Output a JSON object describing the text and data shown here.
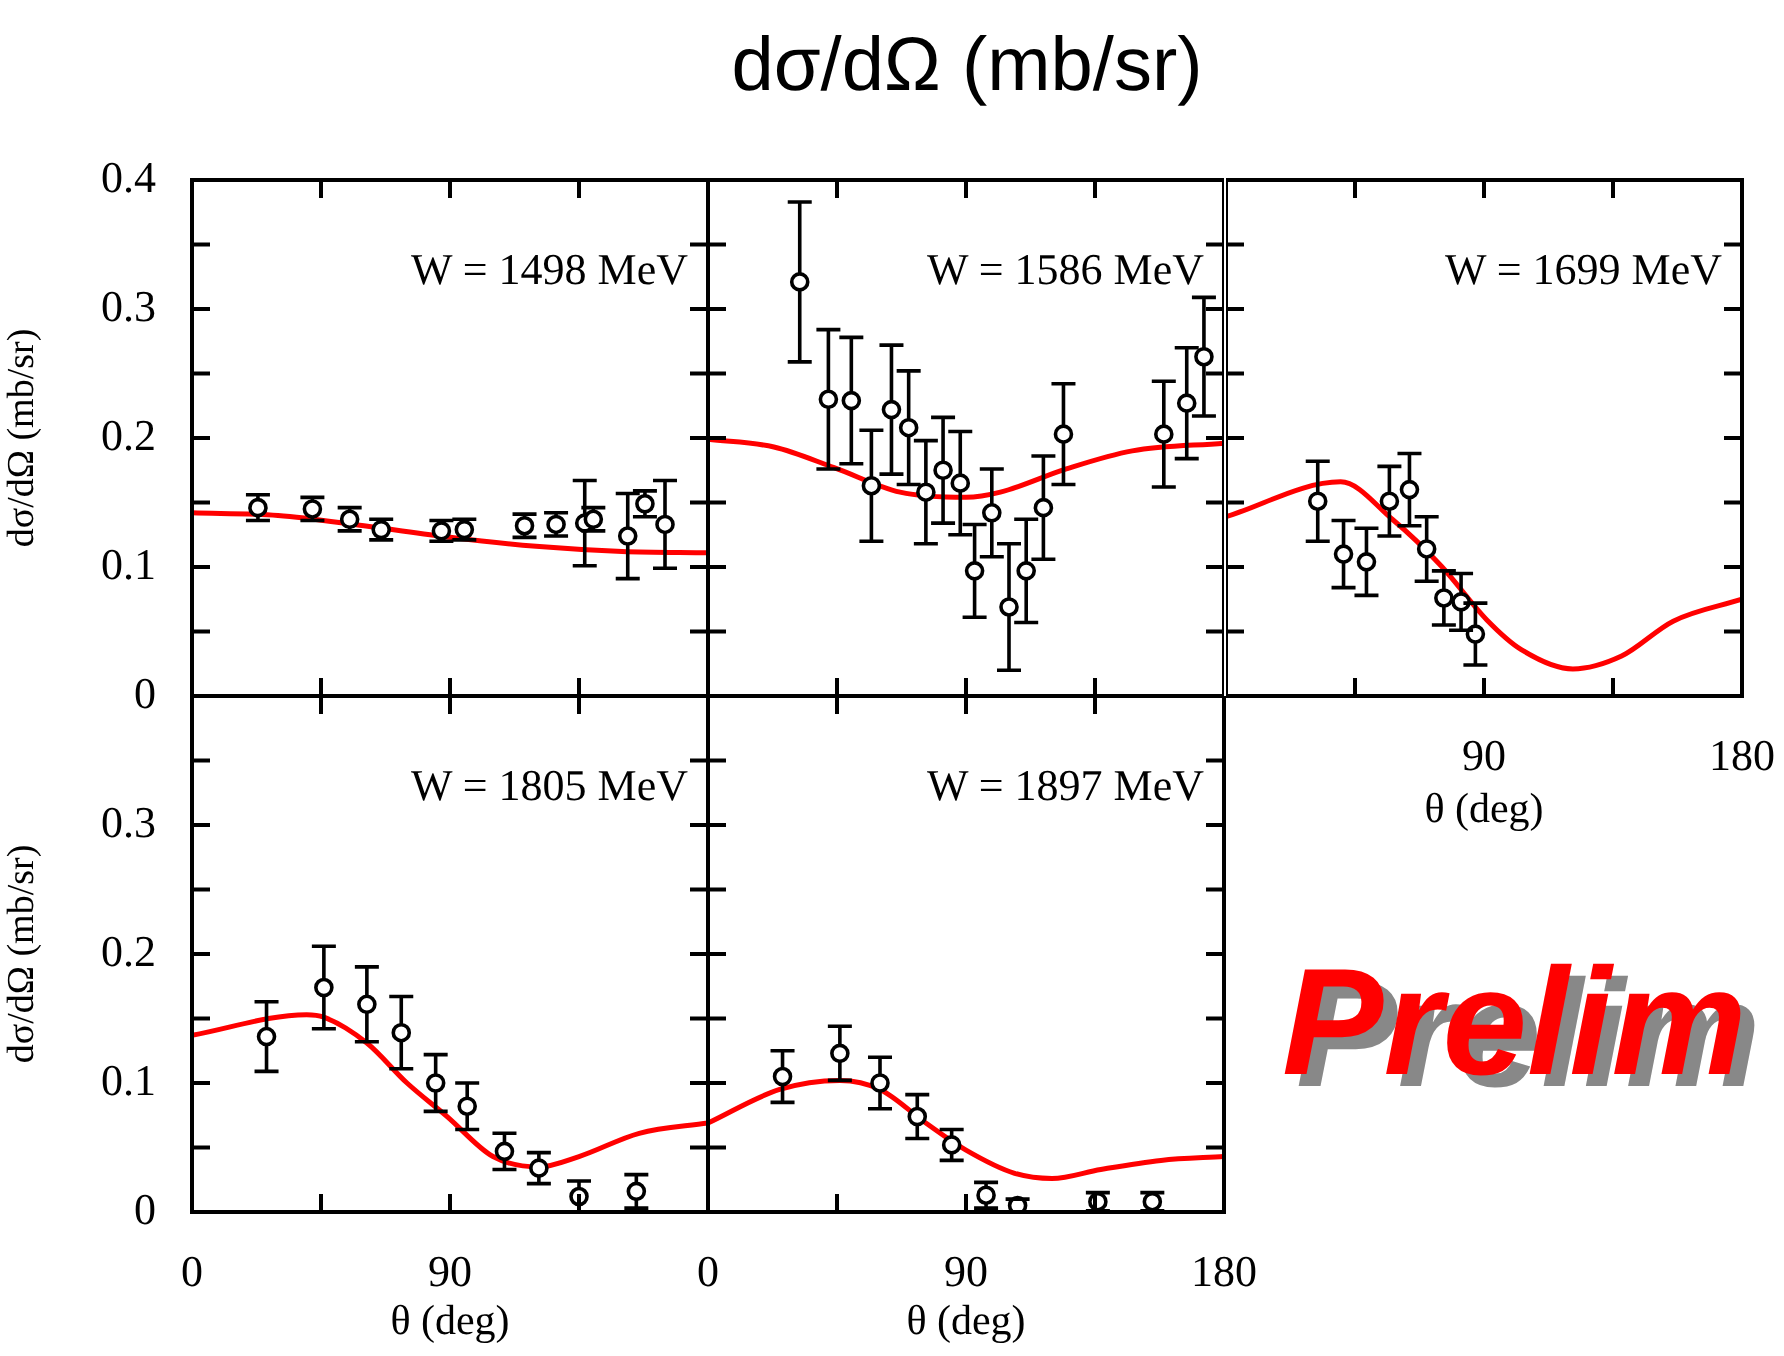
{
  "chart_data": [
    {
      "type": "scatter",
      "ylabel": "dσ/dΩ (mb/sr)",
      "annotations": [
        "W = 1498 MeV"
      ],
      "xlim": [
        0,
        180
      ],
      "xticks": [
        {
          "value": 0,
          "label": null
        },
        {
          "value": 45,
          "label": null
        },
        {
          "value": 90,
          "label": null
        },
        {
          "value": 135,
          "label": null
        },
        {
          "value": 180,
          "label": null
        }
      ],
      "ylim": [
        0,
        0.4
      ],
      "yticks": [
        0,
        {
          "value": 0.05,
          "label": null
        },
        0.1,
        {
          "value": 0.15,
          "label": null
        },
        0.2,
        {
          "value": 0.25,
          "label": null
        },
        0.3,
        {
          "value": 0.35,
          "label": null
        },
        0.4
      ],
      "tick_labels": "y",
      "series": [
        {
          "type": "scatter",
          "color": "#000000",
          "marker": "circle",
          "x": [
            23,
            42,
            55,
            66,
            87,
            95,
            116,
            127,
            137,
            140,
            152,
            158,
            165
          ],
          "values": [
            0.146,
            0.145,
            0.137,
            0.129,
            0.128,
            0.129,
            0.132,
            0.133,
            0.134,
            0.137,
            0.124,
            0.149,
            0.133
          ],
          "errors": [
            0.01,
            0.009,
            0.009,
            0.008,
            0.008,
            0.008,
            0.009,
            0.009,
            0.033,
            0.009,
            0.033,
            0.01,
            0.034
          ]
        },
        {
          "type": "line",
          "color": "#ff0000",
          "marker": "none",
          "x": [
            0,
            30,
            60,
            90,
            120,
            150,
            180
          ],
          "values": [
            0.142,
            0.14,
            0.132,
            0.123,
            0.116,
            0.112,
            0.111
          ]
        }
      ]
    },
    {
      "type": "scatter",
      "title": "dσ/dΩ (mb/sr)",
      "annotations": [
        "W = 1586 MeV"
      ],
      "xlim": [
        0,
        180
      ],
      "xticks": [
        {
          "value": 0,
          "label": null
        },
        {
          "value": 45,
          "label": null
        },
        {
          "value": 90,
          "label": null
        },
        {
          "value": 135,
          "label": null
        },
        {
          "value": 180,
          "label": null
        }
      ],
      "ylim": [
        0,
        0.4
      ],
      "yticks": [
        {
          "value": 0,
          "label": null
        },
        {
          "value": 0.05,
          "label": null
        },
        {
          "value": 0.1,
          "label": null
        },
        {
          "value": 0.15,
          "label": null
        },
        {
          "value": 0.2,
          "label": null
        },
        {
          "value": 0.25,
          "label": null
        },
        {
          "value": 0.3,
          "label": null
        },
        {
          "value": 0.35,
          "label": null
        },
        {
          "value": 0.4,
          "label": null
        }
      ],
      "tick_labels": false,
      "series": [
        {
          "type": "scatter",
          "color": "#000000",
          "marker": "circle",
          "x": [
            32,
            42,
            50,
            57,
            64,
            70,
            76,
            82,
            88,
            93,
            99,
            105,
            111,
            117,
            124,
            159,
            167,
            173
          ],
          "values": [
            0.321,
            0.23,
            0.229,
            0.163,
            0.222,
            0.208,
            0.158,
            0.175,
            0.165,
            0.097,
            0.142,
            0.069,
            0.097,
            0.146,
            0.203,
            0.203,
            0.227,
            0.263
          ],
          "errors": [
            0.062,
            0.054,
            0.049,
            0.043,
            0.05,
            0.044,
            0.04,
            0.041,
            0.04,
            0.036,
            0.034,
            0.049,
            0.04,
            0.04,
            0.039,
            0.041,
            0.043,
            0.046
          ]
        },
        {
          "type": "line",
          "color": "#ff0000",
          "marker": "none",
          "x": [
            0,
            23,
            44,
            67,
            90,
            102,
            125,
            148,
            180
          ],
          "values": [
            0.199,
            0.193,
            0.177,
            0.158,
            0.154,
            0.158,
            0.176,
            0.19,
            0.196
          ]
        }
      ]
    },
    {
      "type": "scatter",
      "xlabel": "θ (deg)",
      "annotations": [
        "W = 1699 MeV",
        "Prelim"
      ],
      "xlim": [
        0,
        180
      ],
      "xticks": [
        {
          "value": 0,
          "label": null
        },
        {
          "value": 45,
          "label": null
        },
        90,
        {
          "value": 135,
          "label": null
        },
        180
      ],
      "ylim": [
        0,
        0.4
      ],
      "yticks": [
        {
          "value": 0,
          "label": null
        },
        {
          "value": 0.05,
          "label": null
        },
        {
          "value": 0.1,
          "label": null
        },
        {
          "value": 0.15,
          "label": null
        },
        {
          "value": 0.2,
          "label": null
        },
        {
          "value": 0.25,
          "label": null
        },
        {
          "value": 0.3,
          "label": null
        },
        {
          "value": 0.35,
          "label": null
        },
        {
          "value": 0.4,
          "label": null
        }
      ],
      "tick_labels": "x",
      "series": [
        {
          "type": "scatter",
          "color": "#000000",
          "marker": "circle",
          "x": [
            32,
            41,
            49,
            57,
            64,
            70,
            76,
            82,
            87
          ],
          "values": [
            0.151,
            0.11,
            0.104,
            0.151,
            0.16,
            0.114,
            0.076,
            0.073,
            0.048
          ],
          "errors": [
            0.031,
            0.026,
            0.026,
            0.027,
            0.028,
            0.025,
            0.021,
            0.022,
            0.024
          ]
        },
        {
          "type": "line",
          "color": "#ff0000",
          "marker": "none",
          "x": [
            0,
            40,
            58,
            75,
            91,
            103,
            121,
            138,
            156,
            180
          ],
          "values": [
            0.139,
            0.166,
            0.137,
            0.101,
            0.059,
            0.036,
            0.021,
            0.031,
            0.058,
            0.075
          ]
        }
      ]
    },
    {
      "type": "scatter",
      "xlabel": "θ (deg)",
      "ylabel": "dσ/dΩ (mb/sr)",
      "annotations": [
        "W = 1805 MeV"
      ],
      "xlim": [
        0,
        180
      ],
      "xticks": [
        0,
        {
          "value": 45,
          "label": null
        },
        90,
        {
          "value": 135,
          "label": null
        },
        {
          "value": 180,
          "label": null
        }
      ],
      "ylim": [
        0,
        0.4
      ],
      "yticks": [
        0,
        {
          "value": 0.05,
          "label": null
        },
        0.1,
        {
          "value": 0.15,
          "label": null
        },
        0.2,
        {
          "value": 0.25,
          "label": null
        },
        0.3,
        {
          "value": 0.35,
          "label": null
        },
        {
          "value": 0.4,
          "label": null
        }
      ],
      "series": [
        {
          "type": "scatter",
          "color": "#000000",
          "marker": "circle",
          "x": [
            26,
            46,
            61,
            73,
            85,
            96,
            109,
            121,
            135,
            155
          ],
          "values": [
            0.136,
            0.174,
            0.161,
            0.139,
            0.1,
            0.082,
            0.047,
            0.034,
            0.012,
            0.016
          ],
          "errors": [
            0.027,
            0.032,
            0.029,
            0.028,
            0.022,
            0.018,
            0.014,
            0.012,
            0.012,
            0.013
          ]
        },
        {
          "type": "line",
          "color": "#ff0000",
          "marker": "none",
          "x": [
            0,
            40,
            46,
            61,
            75,
            89,
            105,
            121,
            135,
            156,
            180
          ],
          "values": [
            0.137,
            0.153,
            0.151,
            0.131,
            0.1,
            0.074,
            0.043,
            0.035,
            0.043,
            0.061,
            0.069
          ]
        }
      ]
    },
    {
      "type": "scatter",
      "xlabel": "θ (deg)",
      "annotations": [
        "W = 1897 MeV"
      ],
      "xlim": [
        0,
        180
      ],
      "xticks": [
        0,
        {
          "value": 45,
          "label": null
        },
        90,
        {
          "value": 135,
          "label": null
        },
        180
      ],
      "ylim": [
        0,
        0.4
      ],
      "yticks": [
        {
          "value": 0,
          "label": null
        },
        {
          "value": 0.05,
          "label": null
        },
        {
          "value": 0.1,
          "label": null
        },
        {
          "value": 0.15,
          "label": null
        },
        {
          "value": 0.2,
          "label": null
        },
        {
          "value": 0.25,
          "label": null
        },
        {
          "value": 0.3,
          "label": null
        },
        {
          "value": 0.35,
          "label": null
        },
        {
          "value": 0.4,
          "label": null
        }
      ],
      "tick_labels": "x",
      "series": [
        {
          "type": "scatter",
          "color": "#000000",
          "marker": "circle",
          "x": [
            26,
            46,
            60,
            73,
            85,
            97,
            108,
            136,
            155
          ],
          "values": [
            0.105,
            0.123,
            0.1,
            0.074,
            0.052,
            0.013,
            0.005,
            0.008,
            0.008
          ],
          "errors": [
            0.02,
            0.021,
            0.02,
            0.017,
            0.012,
            0.01,
            0.005,
            0.007,
            0.007
          ]
        },
        {
          "type": "line",
          "color": "#ff0000",
          "marker": "none",
          "x": [
            0,
            25,
            46,
            60,
            76,
            90,
            107,
            120,
            137,
            158,
            180
          ],
          "values": [
            0.069,
            0.095,
            0.102,
            0.095,
            0.069,
            0.048,
            0.03,
            0.026,
            0.033,
            0.04,
            0.043
          ]
        }
      ]
    }
  ]
}
